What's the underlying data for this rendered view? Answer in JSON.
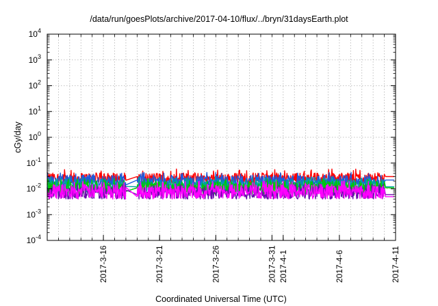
{
  "chart_data": {
    "type": "line",
    "title": "/data/run/goesPlots/archive/2017-04-10/flux/../bryn/31daysEarth.plot",
    "xlabel": "Coordinated Universal Time (UTC)",
    "ylabel": "cGy/day",
    "yscale": "log",
    "ylim_exponents": [
      -4,
      4
    ],
    "y_ticks": [
      {
        "base": "10",
        "exp": "-4"
      },
      {
        "base": "10",
        "exp": "-3"
      },
      {
        "base": "10",
        "exp": "-2"
      },
      {
        "base": "10",
        "exp": "-1"
      },
      {
        "base": "10",
        "exp": "0"
      },
      {
        "base": "10",
        "exp": "1"
      },
      {
        "base": "10",
        "exp": "2"
      },
      {
        "base": "10",
        "exp": "3"
      },
      {
        "base": "10",
        "exp": "4"
      }
    ],
    "x_range": [
      "2017-03-11",
      "2017-04-11"
    ],
    "x_ticks": [
      "2017-3-16",
      "2017-3-21",
      "2017-3-26",
      "2017-3-31",
      "2017-4-1",
      "2017-4-6",
      "2017-4-11"
    ],
    "x_tick_dates": [
      "2017-03-16",
      "2017-03-21",
      "2017-03-26",
      "2017-03-31",
      "2017-04-01",
      "2017-04-06",
      "2017-04-11"
    ],
    "grid": true,
    "data_gaps": [
      [
        "2017-03-18",
        "2017-03-19"
      ]
    ],
    "data_end": "2017-04-10",
    "series": [
      {
        "color": "#ff0000",
        "typical": 0.026,
        "low": 0.018,
        "high": 0.06,
        "plateau": 0.03
      },
      {
        "color": "#1e5adc",
        "typical": 0.02,
        "low": 0.012,
        "high": 0.045,
        "plateau": 0.022
      },
      {
        "color": "#00a0a0",
        "typical": 0.013,
        "low": 0.007,
        "high": 0.03,
        "plateau": 0.012
      },
      {
        "color": "#00c800",
        "typical": 0.011,
        "low": 0.006,
        "high": 0.025,
        "plateau": 0.011
      },
      {
        "color": "#6a0dad",
        "typical": 0.007,
        "low": 0.004,
        "high": 0.016,
        "plateau": 0.006
      },
      {
        "color": "#ff00ff",
        "typical": 0.008,
        "low": 0.004,
        "high": 0.02,
        "plateau": 0.005
      }
    ]
  }
}
